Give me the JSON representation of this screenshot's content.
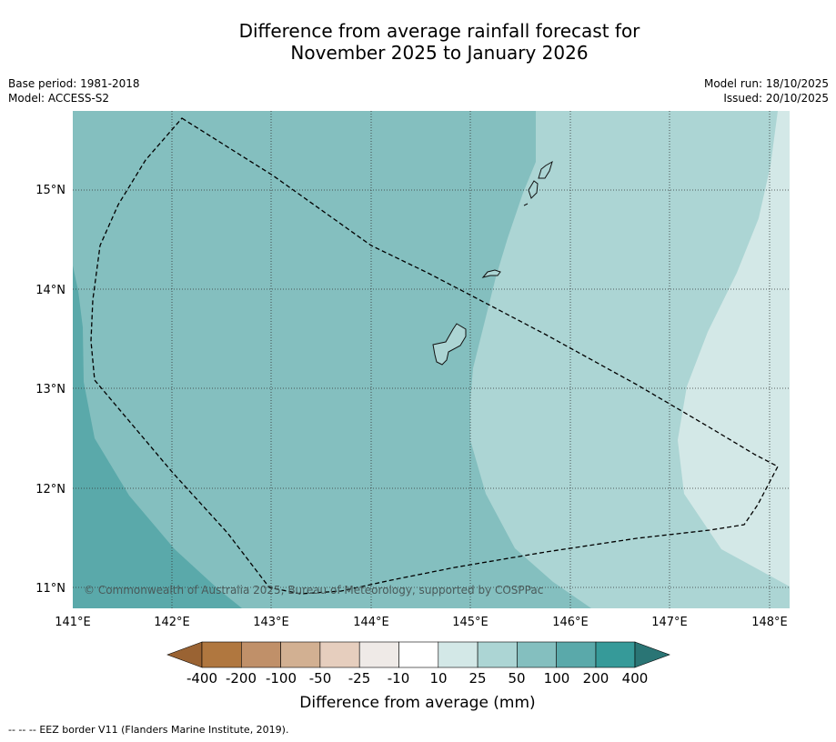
{
  "title": {
    "line1": "Difference from average rainfall forecast for",
    "line2": "November 2025 to January 2026"
  },
  "meta_left": {
    "base_period": "Base period: 1981-2018",
    "model": "Model: ACCESS-S2"
  },
  "meta_right": {
    "model_run": "Model run: 18/10/2025",
    "issued": "Issued: 20/10/2025"
  },
  "map": {
    "lat_labels": [
      "15°N",
      "14°N",
      "13°N",
      "12°N",
      "11°N"
    ],
    "lon_labels": [
      "141°E",
      "142°E",
      "143°E",
      "144°E",
      "145°E",
      "146°E",
      "147°E",
      "148°E"
    ],
    "copyright": "© Commonwealth of Australia 2025, Bureau of Meteorology, supported by COSPPac",
    "region_colors": {
      "band_200": "#5aa9aa",
      "band_100": "#84bfbf",
      "band_50": "#acd5d4",
      "band_25": "#d3e8e7"
    }
  },
  "legend": {
    "title": "Difference from average (mm)",
    "colors": [
      "#9a6333",
      "#b0773f",
      "#c09069",
      "#d2b092",
      "#e6cebe",
      "#efeae7",
      "#ffffff",
      "#d3e8e7",
      "#acd5d4",
      "#84bfbf",
      "#5aa9aa",
      "#369a99",
      "#2a7575"
    ],
    "tick_labels": [
      "-400",
      "-200",
      "-100",
      "-50",
      "-25",
      "-10",
      "10",
      "25",
      "50",
      "100",
      "200",
      "400"
    ]
  },
  "footer": {
    "dashes": "--  --  --",
    "text": "EEZ border V11 (Flanders Marine Institute, 2019)."
  }
}
